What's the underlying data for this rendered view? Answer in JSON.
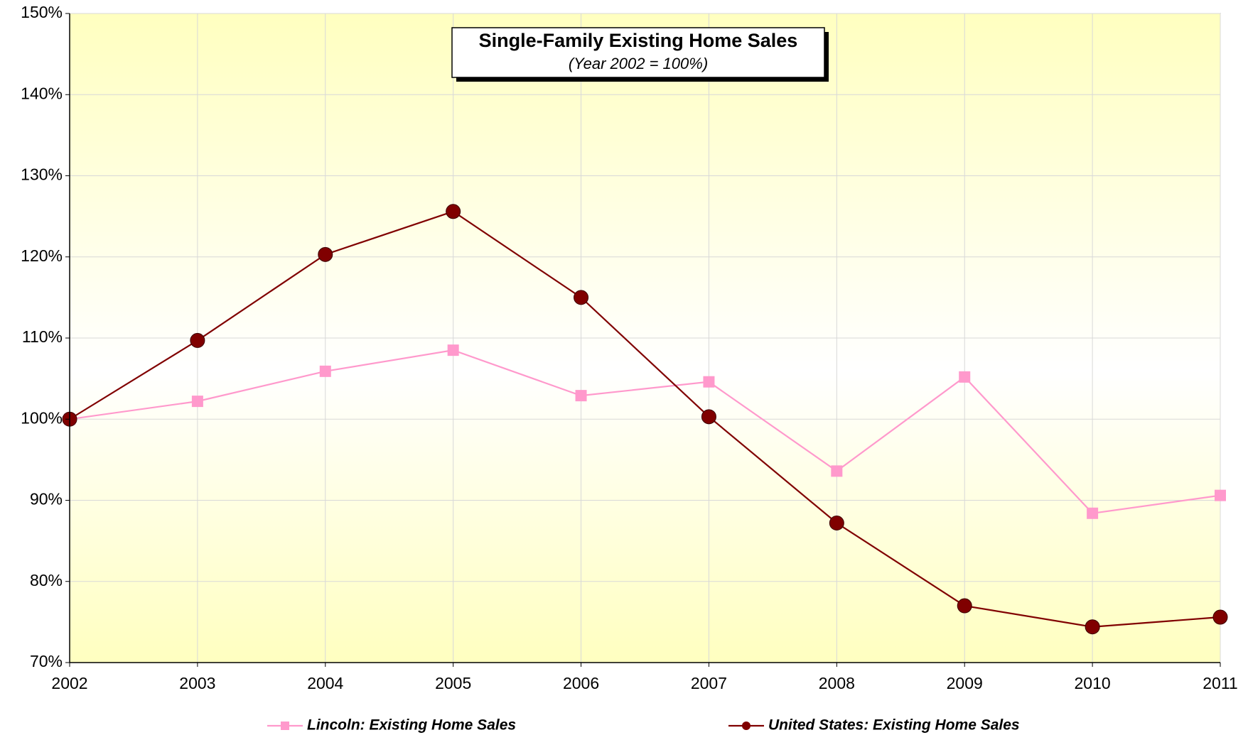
{
  "chart_data": {
    "type": "line",
    "title": "Single-Family Existing Home Sales",
    "subtitle": "(Year 2002 = 100%)",
    "x": [
      2002,
      2003,
      2004,
      2005,
      2006,
      2007,
      2008,
      2009,
      2010,
      2011
    ],
    "xlim": [
      2002,
      2011
    ],
    "xticks": [
      2002,
      2003,
      2004,
      2005,
      2006,
      2007,
      2008,
      2009,
      2010,
      2011
    ],
    "ylim": [
      70,
      150
    ],
    "yticks": [
      {
        "value": 70,
        "label": "70%"
      },
      {
        "value": 80,
        "label": "80%"
      },
      {
        "value": 90,
        "label": "90%"
      },
      {
        "value": 100,
        "label": "100%"
      },
      {
        "value": 110,
        "label": "110%"
      },
      {
        "value": 120,
        "label": "120%"
      },
      {
        "value": 130,
        "label": "130%"
      },
      {
        "value": 140,
        "label": "140%"
      },
      {
        "value": 150,
        "label": "150%"
      }
    ],
    "grid": true,
    "legend": "bottom",
    "series": [
      {
        "name": "Lincoln: Existing Home Sales",
        "color": "#ff99cc",
        "marker": "square",
        "values": [
          100,
          102.2,
          105.9,
          108.5,
          102.9,
          104.6,
          93.6,
          105.2,
          88.4,
          90.6
        ]
      },
      {
        "name": "United States: Existing Home Sales",
        "color": "#800000",
        "marker": "circle",
        "values": [
          100,
          109.7,
          120.3,
          125.6,
          115.0,
          100.3,
          87.2,
          77.0,
          74.4,
          75.6
        ]
      }
    ]
  }
}
